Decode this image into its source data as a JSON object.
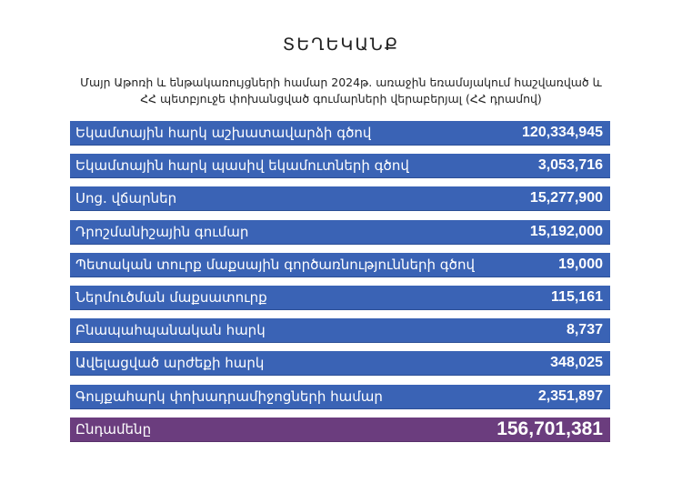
{
  "document": {
    "title": "ՏԵՂԵԿԱՆՔ",
    "subtitle_line1": "Մայր Աթոռի և ենթակառույցների համար 2024թ. առաջին եռամսյակում հաշվառված և",
    "subtitle_line2": "ՀՀ պետբյուջե փոխանցված գումարների վերաբերյալ (ՀՀ դրամով)"
  },
  "colors": {
    "row_blue": "#3a63b5",
    "total_purple": "#6b3d7e",
    "text_white": "#ffffff"
  },
  "table": {
    "rows": [
      {
        "label": "Եկամտային հարկ աշխատավարձի գծով",
        "value": "120,334,945"
      },
      {
        "label": "Եկամտային հարկ պասիվ եկամուտների գծով",
        "value": "3,053,716"
      },
      {
        "label": "Սոց. վճարներ",
        "value": "15,277,900"
      },
      {
        "label": "Դրոշմանիշային գումար",
        "value": "15,192,000"
      },
      {
        "label": "Պետական տուրք մաքսային գործառնությունների գծով",
        "value": "19,000"
      },
      {
        "label": "Ներմուծման մաքսատուրք",
        "value": "115,161"
      },
      {
        "label": "Բնապահպանական հարկ",
        "value": "8,737"
      },
      {
        "label": "Ավելացված արժեքի հարկ",
        "value": "348,025"
      },
      {
        "label": "Գույքահարկ փոխադրամիջոցների համար",
        "value": "2,351,897"
      }
    ],
    "total": {
      "label": "Ընդամենը",
      "value": "156,701,381"
    }
  }
}
